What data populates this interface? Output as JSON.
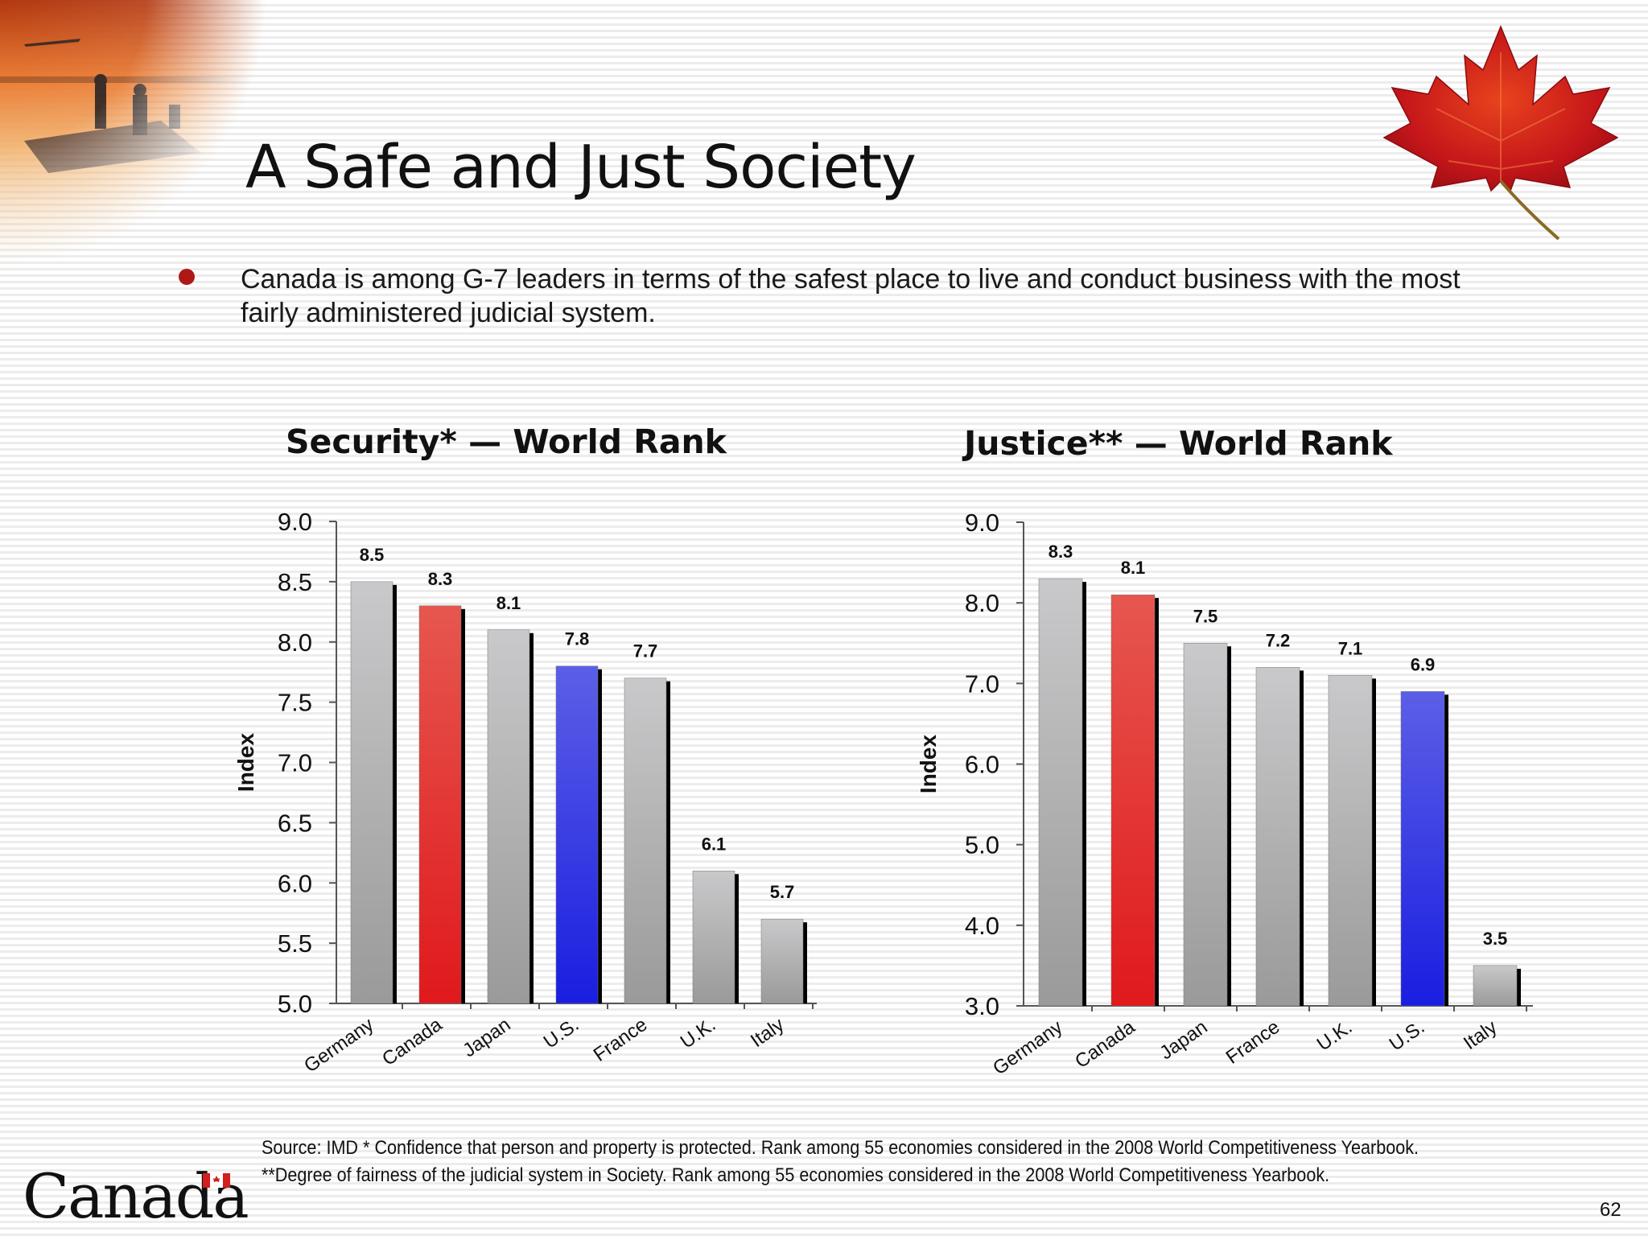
{
  "slide": {
    "title": "A Safe and Just Society",
    "bullet": "Canada is among G-7 leaders in terms of the safest place to live and conduct business with the most fairly administered judicial system.",
    "source_line1": "Source: IMD  * Confidence that person and property is protected. Rank among 55 economies considered in the 2008 World Competitiveness Yearbook.",
    "source_line2": "**Degree of fairness of the judicial system in Society. Rank among 55 economies considered in the 2008 World Competitiveness Yearbook.",
    "wordmark": "Canada",
    "page_number": "62"
  },
  "colors": {
    "canada_bar": "#e0191c",
    "us_bar": "#1a1ee0",
    "other_bar": "#9a9a9a",
    "bullet": "#b01818"
  },
  "chart_data": [
    {
      "type": "bar",
      "title": "Security* — World Rank",
      "ylabel": "Index",
      "ylim": [
        5.0,
        9.0
      ],
      "yticks": [
        "9.0",
        "8.5",
        "8.0",
        "7.5",
        "7.0",
        "6.5",
        "6.0",
        "5.5",
        "5.0"
      ],
      "categories": [
        "Germany",
        "Canada",
        "Japan",
        "U.S.",
        "France",
        "U.K.",
        "Italy"
      ],
      "values": [
        8.5,
        8.3,
        8.1,
        7.8,
        7.7,
        6.1,
        5.7
      ],
      "value_labels": [
        "8.5",
        "8.3",
        "8.1",
        "7.8",
        "7.7",
        "6.1",
        "5.7"
      ],
      "bar_colors": [
        "gray",
        "red",
        "gray",
        "blue",
        "gray",
        "gray",
        "gray"
      ],
      "grid": false,
      "legend": "none"
    },
    {
      "type": "bar",
      "title": "Justice** — World Rank",
      "ylabel": "Index",
      "ylim": [
        3.0,
        9.0
      ],
      "yticks": [
        "9.0",
        "8.0",
        "7.0",
        "6.0",
        "5.0",
        "4.0",
        "3.0"
      ],
      "categories": [
        "Germany",
        "Canada",
        "Japan",
        "France",
        "U.K.",
        "U.S.",
        "Italy"
      ],
      "values": [
        8.3,
        8.1,
        7.5,
        7.2,
        7.1,
        6.9,
        3.5
      ],
      "value_labels": [
        "8.3",
        "8.1",
        "7.5",
        "7.2",
        "7.1",
        "6.9",
        "3.5"
      ],
      "bar_colors": [
        "gray",
        "red",
        "gray",
        "gray",
        "gray",
        "blue",
        "gray"
      ],
      "grid": false,
      "legend": "none"
    }
  ]
}
